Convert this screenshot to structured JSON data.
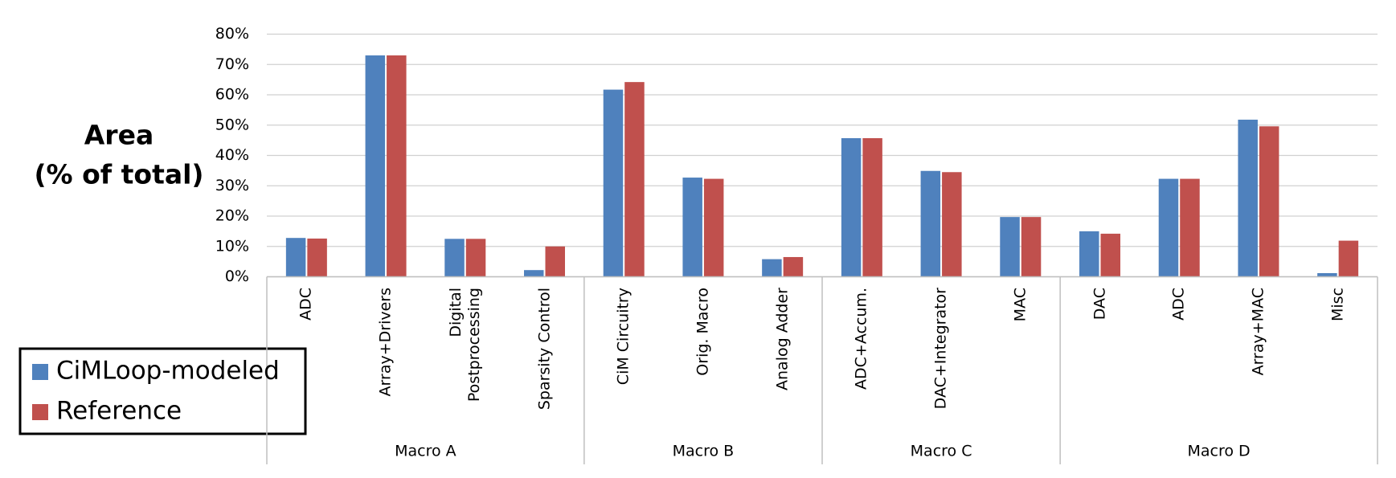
{
  "chart_data": {
    "type": "bar",
    "y_label": [
      "Area",
      "(% of total)"
    ],
    "groups": [
      {
        "name": "Macro A",
        "categories": [
          "ADC",
          "Array+Drivers",
          "Digital Postprocessing",
          "Sparsity Control"
        ]
      },
      {
        "name": "Macro B",
        "categories": [
          "CiM Circuitry",
          "Orig. Macro",
          "Analog Adder"
        ]
      },
      {
        "name": "Macro C",
        "categories": [
          "ADC+Accum.",
          "DAC+Integrator",
          "MAC"
        ]
      },
      {
        "name": "Macro D",
        "categories": [
          "DAC",
          "ADC",
          "Array+MAC",
          "Misc"
        ]
      }
    ],
    "series": [
      {
        "name": "CiMLoop-modeled",
        "color": "#4f81bd",
        "values": [
          12.8,
          73,
          12.5,
          2.2,
          61.7,
          32.7,
          5.8,
          45.7,
          34.9,
          19.7,
          15,
          32.3,
          51.8,
          1.2
        ]
      },
      {
        "name": "Reference",
        "color": "#c0504d",
        "values": [
          12.6,
          73,
          12.5,
          10,
          64.2,
          32.3,
          6.5,
          45.7,
          34.5,
          19.7,
          14.2,
          32.3,
          49.6,
          11.9
        ]
      }
    ],
    "ylim": [
      0,
      80
    ],
    "yticks": [
      {
        "value": 0,
        "label": "0%"
      },
      {
        "value": 10,
        "label": "10%"
      },
      {
        "value": 20,
        "label": "20%"
      },
      {
        "value": 30,
        "label": "30%"
      },
      {
        "value": 40,
        "label": "40%"
      },
      {
        "value": 50,
        "label": "50%"
      },
      {
        "value": 60,
        "label": "60%"
      },
      {
        "value": 70,
        "label": "70%"
      },
      {
        "value": 80,
        "label": "80%"
      }
    ],
    "grid": true
  }
}
